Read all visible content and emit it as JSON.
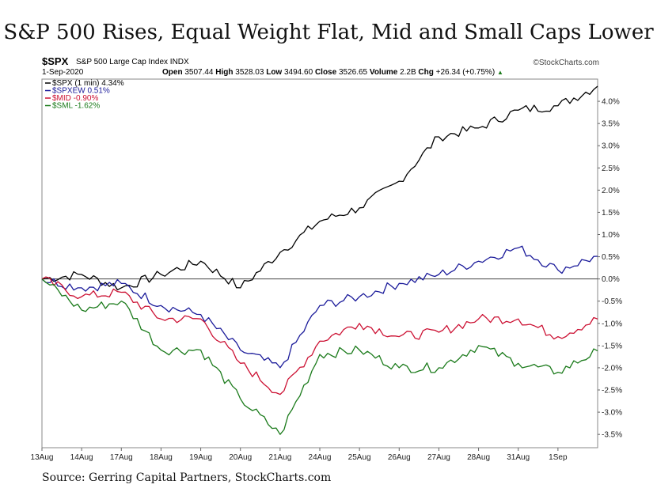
{
  "title": "S&P 500 Rises, Equal Weight Flat, Mid and Small Caps Lower",
  "header": {
    "ticker": "$SPX",
    "name": "S&P 500 Large Cap Index",
    "exchange": "INDX",
    "credit": "©StockCharts.com",
    "date": "1-Sep-2020",
    "open_label": "Open",
    "open": "3507.44",
    "high_label": "High",
    "high": "3528.03",
    "low_label": "Low",
    "low": "3494.60",
    "close_label": "Close",
    "close": "3526.65",
    "volume_label": "Volume",
    "volume": "2.2B",
    "chg_label": "Chg",
    "chg": "+26.34 (+0.75%)"
  },
  "source": "Source: Gerring Capital Partners, StockCharts.com",
  "chart_data": {
    "type": "line",
    "x": [
      "13Aug",
      "14Aug",
      "17Aug",
      "18Aug",
      "19Aug",
      "20Aug",
      "21Aug",
      "24Aug",
      "25Aug",
      "26Aug",
      "27Aug",
      "28Aug",
      "31Aug",
      "1Sep",
      "1Sep close"
    ],
    "x_tick_labels": [
      "13Aug",
      "14Aug",
      "17Aug",
      "18Aug",
      "19Aug",
      "20Aug",
      "21Aug",
      "24Aug",
      "25Aug",
      "26Aug",
      "27Aug",
      "28Aug",
      "31Aug",
      "1Sep"
    ],
    "y_ticks": [
      -3.5,
      -3.0,
      -2.5,
      -2.0,
      -1.5,
      -1.0,
      -0.5,
      0.0,
      0.5,
      1.0,
      1.5,
      2.0,
      2.5,
      3.0,
      3.5,
      4.0
    ],
    "y_tick_labels": [
      "-3.5%",
      "-3.0%",
      "-2.5%",
      "-2.0%",
      "-1.5%",
      "-1.0%",
      "-0.5%",
      "0.0%",
      "0.5%",
      "1.0%",
      "1.5%",
      "2.0%",
      "2.5%",
      "3.0%",
      "3.5%",
      "4.0%"
    ],
    "ylim": [
      -3.8,
      4.5
    ],
    "y_axis_position": "right",
    "grid": false,
    "zero_line": true,
    "legend_position": "top-left",
    "series": [
      {
        "name": "$SPX (1 min) 4.34%",
        "color": "#000000",
        "values": [
          0.0,
          0.1,
          -0.2,
          0.1,
          0.4,
          -0.2,
          0.6,
          1.3,
          1.6,
          2.2,
          3.2,
          3.4,
          3.8,
          3.9,
          4.34
        ]
      },
      {
        "name": "$SPXEW 0.51%",
        "color": "#1a1a9a",
        "values": [
          0.0,
          -0.2,
          -0.1,
          -0.6,
          -0.8,
          -1.6,
          -2.0,
          -0.6,
          -0.4,
          -0.1,
          0.1,
          0.4,
          0.7,
          0.2,
          0.51
        ]
      },
      {
        "name": "$MID -0.90%",
        "color": "#cc1133",
        "values": [
          0.0,
          -0.4,
          -0.3,
          -0.9,
          -0.9,
          -1.9,
          -2.6,
          -1.4,
          -1.0,
          -1.3,
          -1.2,
          -0.9,
          -0.9,
          -1.3,
          -0.9
        ]
      },
      {
        "name": "$SML -1.62%",
        "color": "#1a7a1a",
        "values": [
          0.0,
          -0.7,
          -0.5,
          -1.6,
          -1.6,
          -2.7,
          -3.5,
          -1.7,
          -1.6,
          -2.0,
          -2.0,
          -1.5,
          -1.9,
          -2.1,
          -1.62
        ]
      }
    ]
  }
}
